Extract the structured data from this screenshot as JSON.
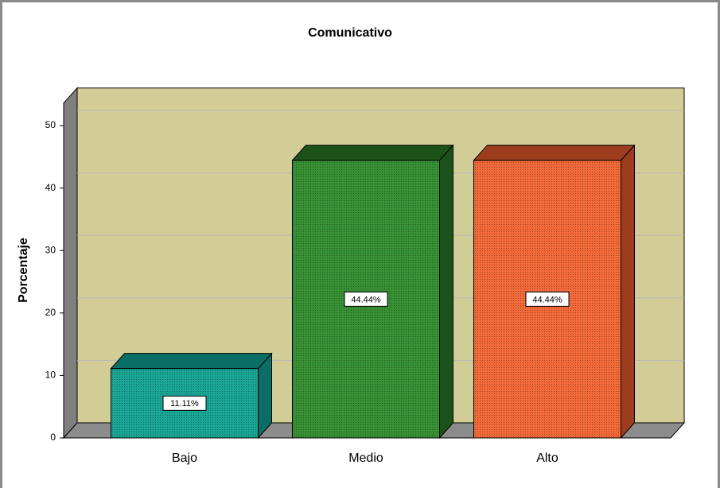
{
  "chart_data": {
    "type": "bar3d",
    "title": "Comunicativo",
    "y_label": "Porcentaje",
    "categories": [
      "Bajo",
      "Medio",
      "Alto"
    ],
    "values": [
      11.11,
      44.44,
      44.44
    ],
    "value_labels": [
      "11.11%",
      "44.44%",
      "44.44%"
    ],
    "colors": [
      "#1aa595",
      "#379033",
      "#f26a3a"
    ],
    "side_colors": [
      "#0b6e66",
      "#1c521a",
      "#9c3d1d"
    ],
    "wall_color": "#d2cd96",
    "ylim": [
      0,
      53.6
    ],
    "yticks": [
      0,
      10,
      20,
      30,
      40,
      50
    ],
    "grid": true
  }
}
